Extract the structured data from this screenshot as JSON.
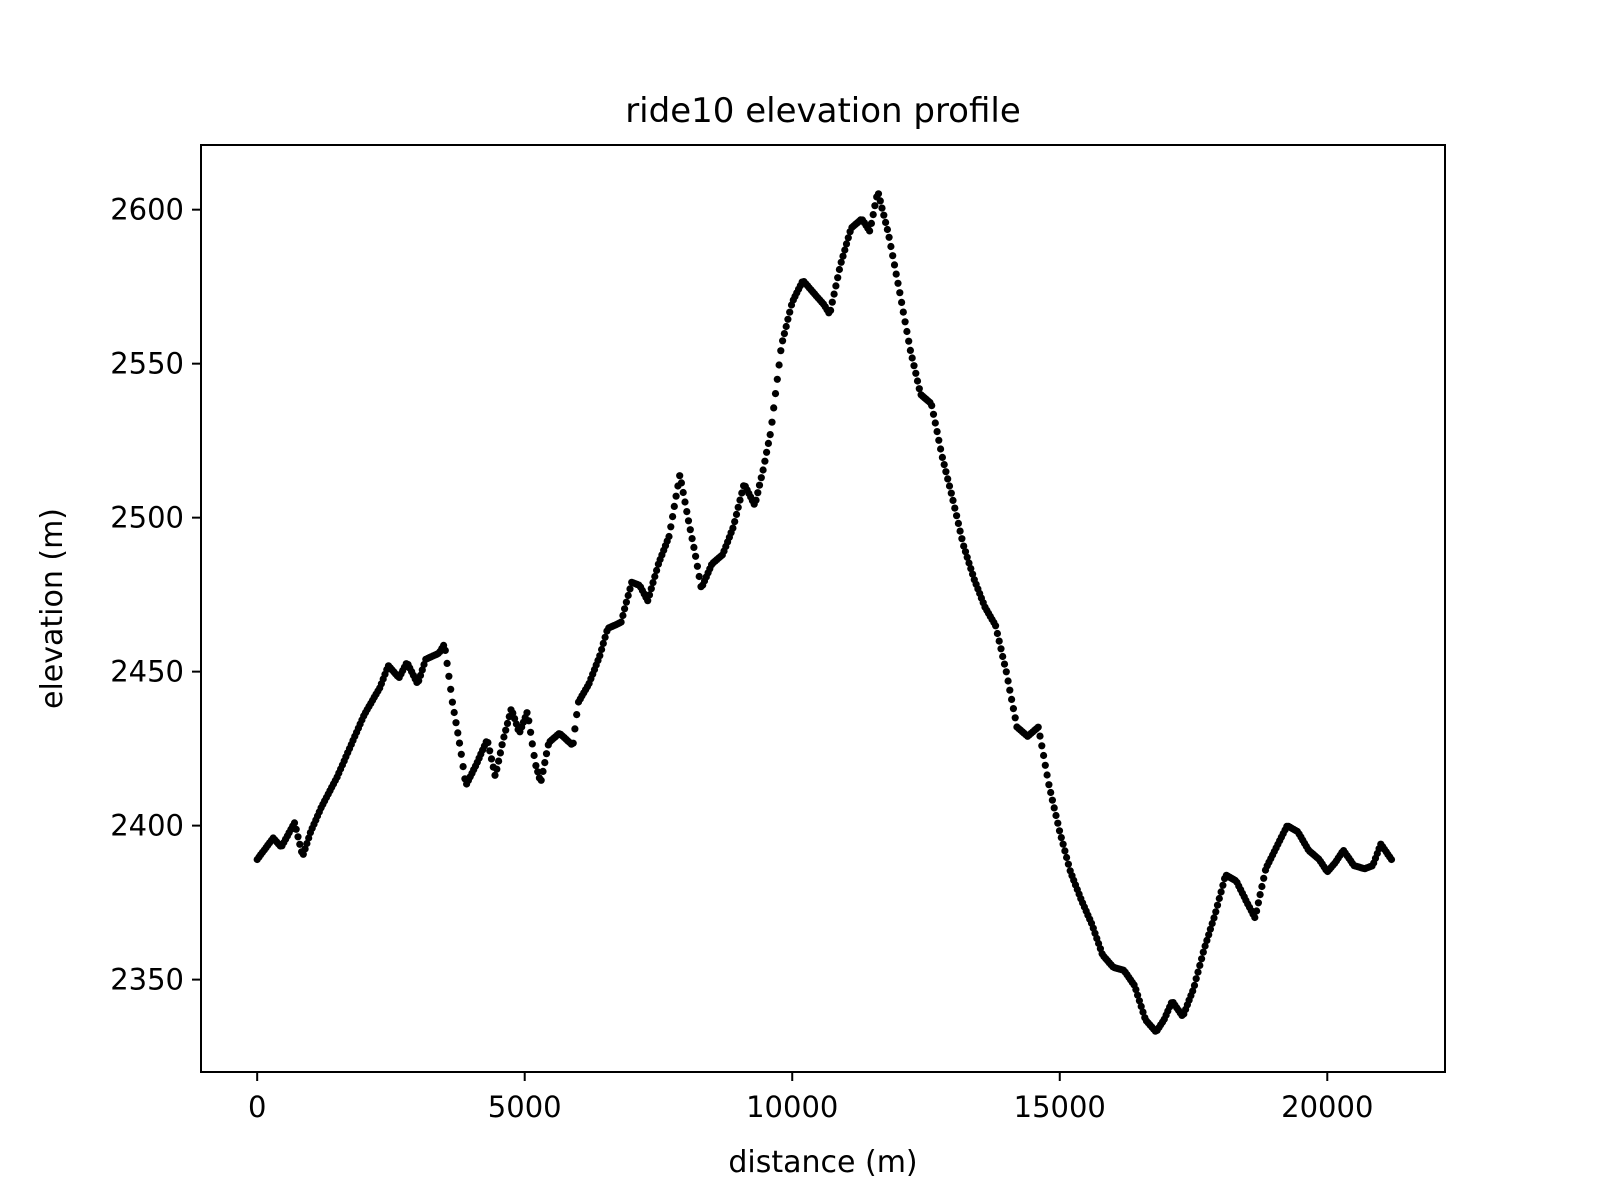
{
  "chart_data": {
    "type": "scatter",
    "title": "ride10 elevation profile",
    "xlabel": "distance (m)",
    "ylabel": "elevation (m)",
    "xlim": [
      -1050,
      22200
    ],
    "ylim": [
      2320,
      2621
    ],
    "xticks": [
      0,
      5000,
      10000,
      15000,
      20000
    ],
    "yticks": [
      2350,
      2400,
      2450,
      2500,
      2550,
      2600
    ],
    "xtick_labels": [
      "0",
      "5000",
      "10000",
      "15000",
      "20000"
    ],
    "ytick_labels": [
      "2350",
      "2400",
      "2450",
      "2500",
      "2550",
      "2600"
    ],
    "grid": false,
    "legend": "none",
    "marker_color": "#000000",
    "series": [
      {
        "anchors": [
          [
            0,
            2389
          ],
          [
            300,
            2396
          ],
          [
            450,
            2393
          ],
          [
            700,
            2401
          ],
          [
            850,
            2390
          ],
          [
            1000,
            2398
          ],
          [
            1200,
            2406
          ],
          [
            1500,
            2416
          ],
          [
            1800,
            2428
          ],
          [
            2000,
            2436
          ],
          [
            2300,
            2445
          ],
          [
            2450,
            2452
          ],
          [
            2650,
            2448
          ],
          [
            2800,
            2453
          ],
          [
            3000,
            2446
          ],
          [
            3150,
            2454
          ],
          [
            3400,
            2456
          ],
          [
            3500,
            2459
          ],
          [
            3650,
            2440
          ],
          [
            3800,
            2425
          ],
          [
            3900,
            2413
          ],
          [
            4100,
            2420
          ],
          [
            4300,
            2428
          ],
          [
            4450,
            2416
          ],
          [
            4600,
            2428
          ],
          [
            4750,
            2438
          ],
          [
            4900,
            2430
          ],
          [
            5050,
            2437
          ],
          [
            5200,
            2420
          ],
          [
            5300,
            2414
          ],
          [
            5450,
            2427
          ],
          [
            5650,
            2430
          ],
          [
            5900,
            2426
          ],
          [
            6000,
            2440
          ],
          [
            6200,
            2446
          ],
          [
            6400,
            2455
          ],
          [
            6550,
            2464
          ],
          [
            6800,
            2466
          ],
          [
            7000,
            2479
          ],
          [
            7150,
            2478
          ],
          [
            7300,
            2473
          ],
          [
            7500,
            2485
          ],
          [
            7700,
            2494
          ],
          [
            7900,
            2514
          ],
          [
            8050,
            2500
          ],
          [
            8200,
            2487
          ],
          [
            8300,
            2477
          ],
          [
            8500,
            2485
          ],
          [
            8700,
            2488
          ],
          [
            8900,
            2497
          ],
          [
            9100,
            2511
          ],
          [
            9300,
            2504
          ],
          [
            9450,
            2515
          ],
          [
            9600,
            2528
          ],
          [
            9800,
            2556
          ],
          [
            10000,
            2570
          ],
          [
            10200,
            2577
          ],
          [
            10400,
            2573
          ],
          [
            10600,
            2569
          ],
          [
            10700,
            2566
          ],
          [
            10900,
            2582
          ],
          [
            11100,
            2594
          ],
          [
            11300,
            2597
          ],
          [
            11450,
            2593
          ],
          [
            11600,
            2606
          ],
          [
            11800,
            2592
          ],
          [
            12000,
            2574
          ],
          [
            12200,
            2555
          ],
          [
            12400,
            2540
          ],
          [
            12600,
            2537
          ],
          [
            12800,
            2520
          ],
          [
            13000,
            2506
          ],
          [
            13200,
            2491
          ],
          [
            13400,
            2480
          ],
          [
            13600,
            2471
          ],
          [
            13800,
            2465
          ],
          [
            14000,
            2450
          ],
          [
            14200,
            2432
          ],
          [
            14400,
            2429
          ],
          [
            14600,
            2432
          ],
          [
            14800,
            2413
          ],
          [
            15000,
            2398
          ],
          [
            15200,
            2385
          ],
          [
            15400,
            2376
          ],
          [
            15600,
            2368
          ],
          [
            15800,
            2358
          ],
          [
            16000,
            2354
          ],
          [
            16200,
            2353
          ],
          [
            16400,
            2348
          ],
          [
            16600,
            2337
          ],
          [
            16800,
            2333
          ],
          [
            16950,
            2337
          ],
          [
            17100,
            2343
          ],
          [
            17300,
            2338
          ],
          [
            17500,
            2347
          ],
          [
            17700,
            2360
          ],
          [
            17900,
            2371
          ],
          [
            18100,
            2384
          ],
          [
            18300,
            2382
          ],
          [
            18500,
            2375
          ],
          [
            18650,
            2370
          ],
          [
            18850,
            2386
          ],
          [
            19050,
            2393
          ],
          [
            19250,
            2400
          ],
          [
            19450,
            2398
          ],
          [
            19650,
            2392
          ],
          [
            19850,
            2389
          ],
          [
            20000,
            2385
          ],
          [
            20150,
            2388
          ],
          [
            20300,
            2392
          ],
          [
            20500,
            2387
          ],
          [
            20700,
            2386
          ],
          [
            20850,
            2387
          ],
          [
            21000,
            2394
          ],
          [
            21200,
            2389
          ]
        ],
        "num_points": 640
      }
    ]
  }
}
